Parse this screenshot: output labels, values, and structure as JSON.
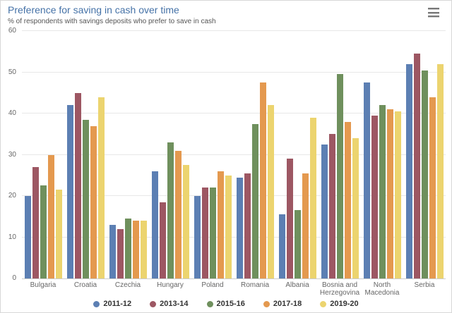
{
  "header": {
    "menu_tooltip": "Chart context menu"
  },
  "chart_data": {
    "type": "bar",
    "title": "Preference for saving in cash over time",
    "subtitle": "% of respondents with savings deposits who prefer to save in cash",
    "categories": [
      "Bulgaria",
      "Croatia",
      "Czechia",
      "Hungary",
      "Poland",
      "Romania",
      "Albania",
      "Bosnia and Herzegovina",
      "North Macedonia",
      "Serbia"
    ],
    "series": [
      {
        "name": "2011-12",
        "color": "#5c7fb3",
        "values": [
          20,
          42,
          13,
          26,
          20,
          24.5,
          15.5,
          32.5,
          47.5,
          52
        ]
      },
      {
        "name": "2013-14",
        "color": "#9d5763",
        "values": [
          27,
          45,
          12,
          18.5,
          22,
          25.5,
          29,
          35,
          39.5,
          54.5
        ]
      },
      {
        "name": "2015-16",
        "color": "#6f905d",
        "values": [
          22.5,
          38.5,
          14.5,
          33,
          22,
          37.5,
          16.5,
          49.5,
          42,
          50.5
        ]
      },
      {
        "name": "2017-18",
        "color": "#e4994f",
        "values": [
          30,
          37,
          14,
          31,
          26,
          47.5,
          25.5,
          38,
          41,
          44
        ]
      },
      {
        "name": "2019-20",
        "color": "#ecd46f",
        "values": [
          21.5,
          44,
          14,
          27.5,
          25,
          42,
          39,
          34,
          40.5,
          52
        ]
      }
    ],
    "xlabel": "",
    "ylabel": "",
    "ylim": [
      0,
      60
    ],
    "yticks": [
      0,
      10,
      20,
      30,
      40,
      50,
      60
    ],
    "grid": true,
    "legend_position": "bottom"
  },
  "colors": {
    "title_text": "#4572a7",
    "subtitle_text": "#555555",
    "axis_tick_text": "#666666",
    "gridline": "#e7e7e7",
    "axis_line": "#cccccc",
    "legend_text": "#333333"
  }
}
